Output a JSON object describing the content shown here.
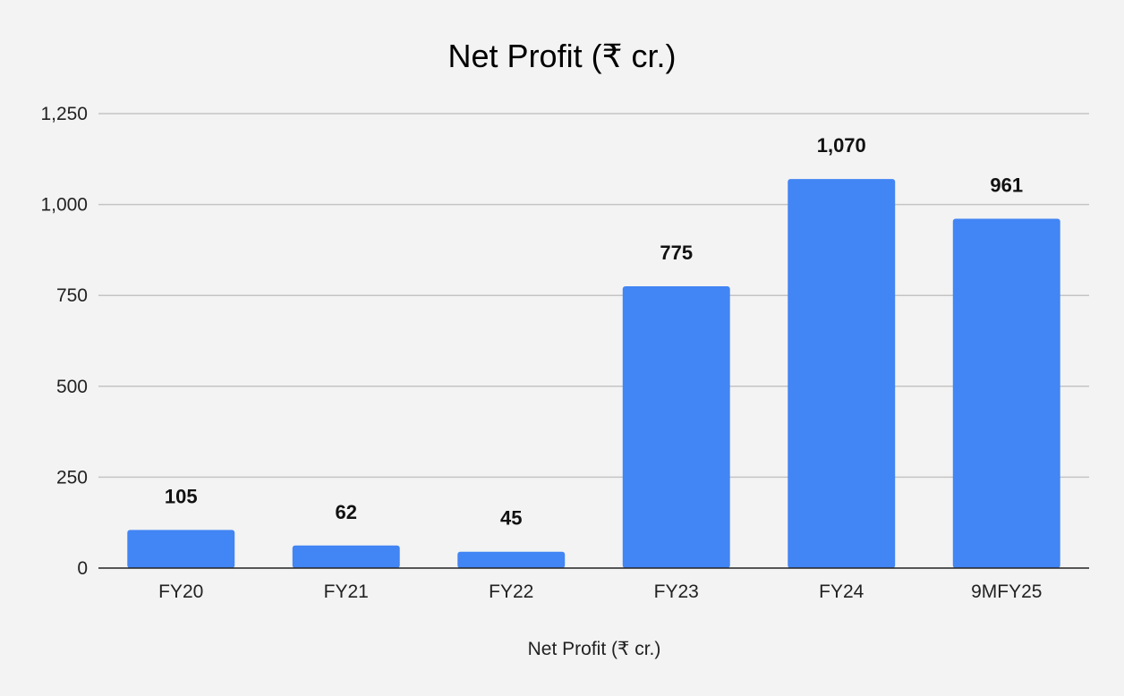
{
  "chart_data": {
    "type": "bar",
    "title": "Net Profit (₹ cr.)",
    "xlabel": "Net Profit (₹ cr.)",
    "ylabel": "",
    "categories": [
      "FY20",
      "FY21",
      "FY22",
      "FY23",
      "FY24",
      "9MFY25"
    ],
    "values": [
      105,
      62,
      45,
      775,
      1070,
      961
    ],
    "data_labels": [
      "105",
      "62",
      "45",
      "775",
      "1,070",
      "961"
    ],
    "ylim": [
      0,
      1250
    ],
    "yticks": [
      0,
      250,
      500,
      750,
      1000,
      1250
    ],
    "ytick_labels": [
      "0",
      "250",
      "500",
      "750",
      "1,000",
      "1,250"
    ],
    "grid": true,
    "legend": "none",
    "colors": {
      "bar": "#4285f4",
      "background": "#f3f3f3"
    }
  }
}
